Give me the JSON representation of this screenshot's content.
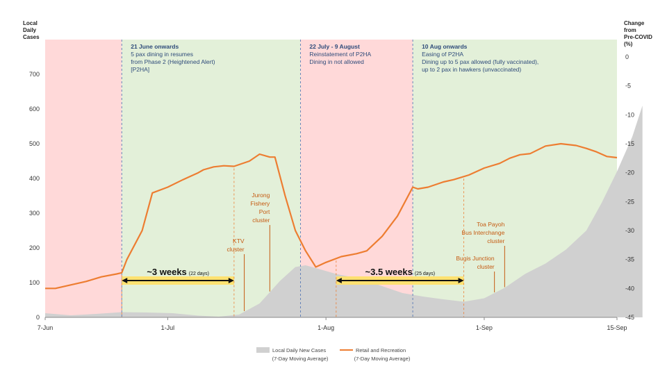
{
  "chart_data": {
    "type": "area+line",
    "x_ticks": [
      "7-Jun",
      "1-Jul",
      "1-Aug",
      "1-Sep",
      "15-Sep"
    ],
    "left_axis": {
      "title": [
        "Local",
        "Daily",
        "Cases"
      ],
      "ticks": [
        "0",
        "100",
        "200",
        "300",
        "400",
        "500",
        "600",
        "700"
      ],
      "ylim": [
        0,
        800
      ]
    },
    "right_axis": {
      "title": [
        "Change",
        "from",
        "Pre-COVID",
        "(%)"
      ],
      "ticks": [
        "0",
        "-5",
        "-10",
        "-15",
        "-20",
        "-25",
        "-30",
        "-35",
        "-40",
        "-45"
      ],
      "ylim": [
        -45,
        3
      ]
    },
    "series": [
      {
        "name": "Local Daily New Cases",
        "sub": "(7-Day Moving Average)",
        "axis": "left",
        "color": "#d0d0d0",
        "points": [
          [
            0,
            12
          ],
          [
            5,
            6
          ],
          [
            10,
            10
          ],
          [
            15,
            15
          ],
          [
            20,
            14
          ],
          [
            25,
            12
          ],
          [
            30,
            5
          ],
          [
            34,
            2
          ],
          [
            38,
            8
          ],
          [
            42,
            40
          ],
          [
            46,
            105
          ],
          [
            49,
            145
          ],
          [
            51,
            150
          ],
          [
            53,
            142
          ],
          [
            57,
            125
          ],
          [
            62,
            110
          ],
          [
            66,
            90
          ],
          [
            70,
            70
          ],
          [
            74,
            60
          ],
          [
            78,
            52
          ],
          [
            82,
            45
          ],
          [
            86,
            55
          ],
          [
            90,
            85
          ],
          [
            94,
            125
          ],
          [
            98,
            155
          ],
          [
            102,
            195
          ],
          [
            106,
            250
          ],
          [
            109,
            330
          ],
          [
            112,
            420
          ],
          [
            115,
            520
          ],
          [
            117,
            610
          ]
        ]
      },
      {
        "name": "Retail and Recreation",
        "sub": "(7-Day Moving Average)",
        "axis": "right",
        "color": "#ed7d31",
        "points": [
          [
            0,
            -40
          ],
          [
            2,
            -40
          ],
          [
            5,
            -39.4
          ],
          [
            8,
            -38.8
          ],
          [
            11,
            -38
          ],
          [
            14,
            -37.5
          ],
          [
            15,
            -37.3
          ],
          [
            16,
            -35
          ],
          [
            19,
            -30
          ],
          [
            21,
            -23.5
          ],
          [
            24,
            -22.5
          ],
          [
            27,
            -21.2
          ],
          [
            30,
            -20
          ],
          [
            31,
            -19.5
          ],
          [
            33,
            -19
          ],
          [
            35,
            -18.8
          ],
          [
            37,
            -18.9
          ],
          [
            40,
            -18
          ],
          [
            42,
            -16.8
          ],
          [
            44,
            -17.3
          ],
          [
            45,
            -17.3
          ],
          [
            47,
            -24
          ],
          [
            49,
            -30
          ],
          [
            51,
            -33.5
          ],
          [
            53,
            -36.3
          ],
          [
            55,
            -35.5
          ],
          [
            58,
            -34.5
          ],
          [
            61,
            -34
          ],
          [
            63,
            -33.5
          ],
          [
            66,
            -31
          ],
          [
            69,
            -27.5
          ],
          [
            72,
            -22.5
          ],
          [
            73,
            -22.8
          ],
          [
            75,
            -22.5
          ],
          [
            78,
            -21.6
          ],
          [
            80,
            -21.2
          ],
          [
            83,
            -20.4
          ],
          [
            86,
            -19.2
          ],
          [
            89,
            -18.4
          ],
          [
            91,
            -17.5
          ],
          [
            93,
            -16.9
          ],
          [
            95,
            -16.7
          ],
          [
            98,
            -15.4
          ],
          [
            101,
            -15
          ],
          [
            104,
            -15.3
          ],
          [
            106,
            -15.8
          ],
          [
            108,
            -16.4
          ],
          [
            110,
            -17.2
          ],
          [
            112,
            -17.4
          ]
        ]
      }
    ],
    "phases": [
      {
        "from": 0,
        "to": 15,
        "color": "#ffd9d9",
        "head": "",
        "lines": []
      },
      {
        "from": 15,
        "to": 50,
        "color": "#e3f0d9",
        "head": "21 June onwards",
        "lines": [
          "5 pax dining in resumes",
          "from Phase 2 (Heightened Alert)",
          "[P2HA]"
        ]
      },
      {
        "from": 50,
        "to": 72,
        "color": "#ffd9d9",
        "head": "22 July - 9 August",
        "lines": [
          "Reinstatement  of P2HA",
          "Dining in not allowed"
        ]
      },
      {
        "from": 72,
        "to": 112,
        "color": "#e3f0d9",
        "head": "10 Aug onwards",
        "lines": [
          "Easing of P2HA",
          "Dining up to  5 pax allowed (fully vaccinated),",
          "up to 2 pax in hawkers (unvaccinated)"
        ]
      }
    ],
    "clusters": [
      {
        "day": 39,
        "lines": [
          "KTV",
          "cluster"
        ]
      },
      {
        "day": 44,
        "lines": [
          "Jurong",
          "Fishery",
          "Port",
          "cluster"
        ]
      },
      {
        "day": 88,
        "lines": [
          "Bugis Junction",
          "cluster"
        ]
      },
      {
        "day": 90,
        "lines": [
          "Toa Payoh",
          "Bus Interchange",
          "cluster"
        ]
      }
    ],
    "durations": [
      {
        "from": 15,
        "to": 37,
        "label": "~3 weeks",
        "sub": "(22 days)"
      },
      {
        "from": 57,
        "to": 82,
        "label": "~3.5 weeks",
        "sub": "(25 days)"
      }
    ]
  }
}
